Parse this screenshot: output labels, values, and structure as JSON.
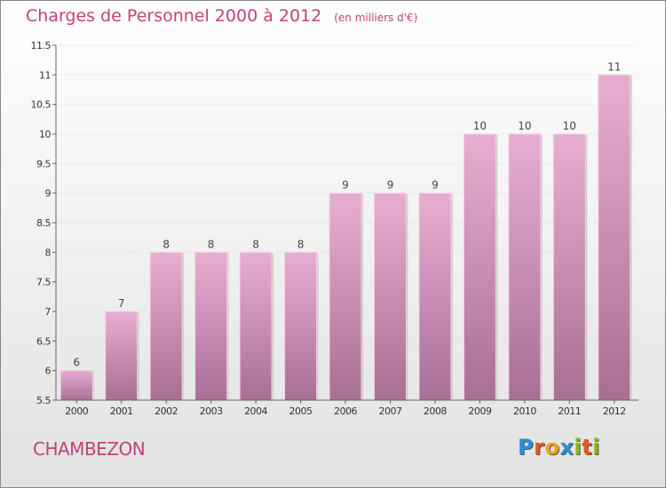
{
  "header": {
    "title": "Charges de Personnel 2000 à 2012",
    "subtitle": "(en milliers d'€)"
  },
  "footer": {
    "city": "CHAMBEZON",
    "logo": "Proxiti"
  },
  "colors": {
    "accent": "#c4407c",
    "bar_top": "#e8aed2",
    "bar_bottom": "#a86f95"
  },
  "chart_data": {
    "type": "bar",
    "categories": [
      "2000",
      "2001",
      "2002",
      "2003",
      "2004",
      "2005",
      "2006",
      "2007",
      "2008",
      "2009",
      "2010",
      "2011",
      "2012"
    ],
    "values": [
      6,
      7,
      8,
      8,
      8,
      8,
      9,
      9,
      9,
      10,
      10,
      10,
      11
    ],
    "data_labels": [
      "6",
      "7",
      "8",
      "8",
      "8",
      "8",
      "9",
      "9",
      "9",
      "10",
      "10",
      "10",
      "11"
    ],
    "ylim": [
      5.5,
      11.5
    ],
    "yticks": [
      "5.5",
      "6",
      "6.5",
      "7",
      "7.5",
      "8",
      "8.5",
      "9",
      "9.5",
      "10",
      "10.5",
      "11",
      "11.5"
    ],
    "grid": true,
    "xlabel": "",
    "ylabel": ""
  }
}
